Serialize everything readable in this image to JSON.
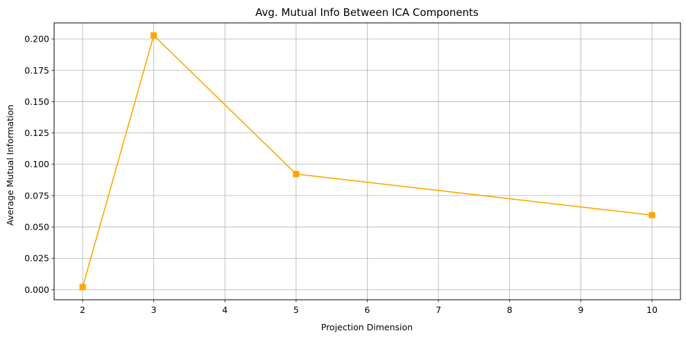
{
  "chart_data": {
    "type": "line",
    "title": "Avg. Mutual Info Between ICA Components",
    "xlabel": "Projection Dimension",
    "ylabel": "Average Mutual Information",
    "xlim": [
      1.6,
      10.4
    ],
    "ylim": [
      -0.0081,
      0.2128
    ],
    "xticks": [
      2,
      3,
      4,
      5,
      6,
      7,
      8,
      9,
      10
    ],
    "xtick_labels": [
      "2",
      "3",
      "4",
      "5",
      "6",
      "7",
      "8",
      "9",
      "10"
    ],
    "yticks": [
      0.0,
      0.025,
      0.05,
      0.075,
      0.1,
      0.125,
      0.15,
      0.175,
      0.2
    ],
    "ytick_labels": [
      "0.000",
      "0.025",
      "0.050",
      "0.075",
      "0.100",
      "0.125",
      "0.150",
      "0.175",
      "0.200"
    ],
    "grid": true,
    "series": [
      {
        "color": "#ffa500",
        "marker": "square",
        "x": [
          2,
          3,
          5,
          10
        ],
        "y": [
          0.0019,
          0.2028,
          0.0922,
          0.0594
        ]
      }
    ]
  }
}
